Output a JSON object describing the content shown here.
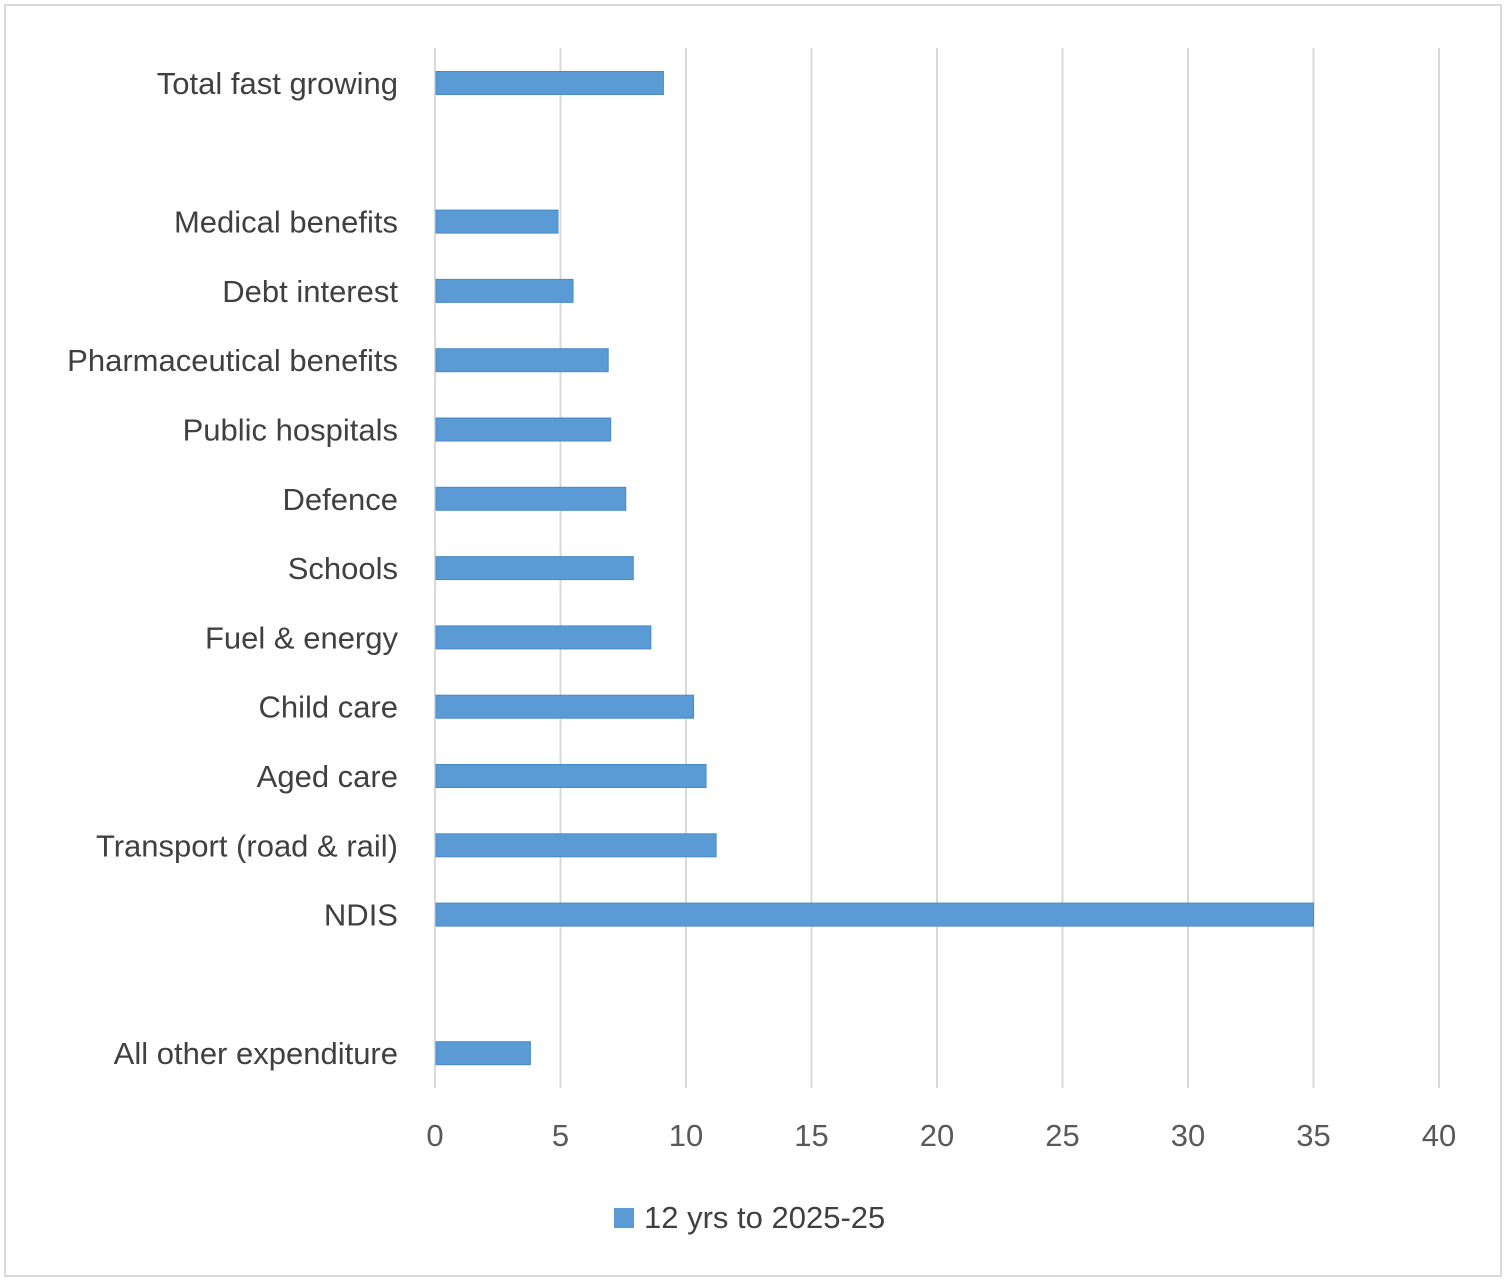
{
  "chart_data": {
    "type": "bar",
    "orientation": "horizontal",
    "categories": [
      "Total fast growing",
      "",
      "Medical benefits",
      "Debt interest",
      "Pharmaceutical benefits",
      "Public hospitals",
      "Defence ",
      "Schools",
      "Fuel & energy",
      "Child care",
      "Aged care",
      "Transport (road & rail)",
      "NDIS",
      "",
      "All other expenditure"
    ],
    "series": [
      {
        "name": "12 yrs to 2025-25",
        "color": "#5b9bd5",
        "values": [
          9.1,
          null,
          4.9,
          5.5,
          6.9,
          7.0,
          7.6,
          7.9,
          8.6,
          10.3,
          10.8,
          11.2,
          35.0,
          null,
          3.8
        ]
      }
    ],
    "xlim": [
      0,
      40
    ],
    "xticks": [
      0,
      5,
      10,
      15,
      20,
      25,
      30,
      35,
      40
    ],
    "grid": "vertical",
    "legend": "bottom"
  }
}
